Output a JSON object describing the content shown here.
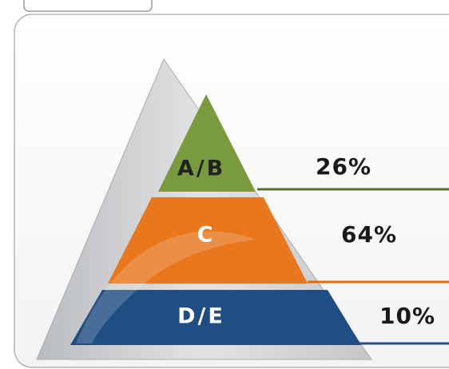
{
  "chart_data": {
    "type": "pyramid",
    "categories": [
      "A/B",
      "C",
      "D/E"
    ],
    "values": [
      26,
      64,
      10
    ],
    "value_labels": [
      "26%",
      "64%",
      "10%"
    ],
    "colors": [
      "#7a9a3e",
      "#e8771e",
      "#1f4e82"
    ],
    "line_colors": [
      "#5a6e2e",
      "#e06a10",
      "#2a4f80"
    ]
  }
}
